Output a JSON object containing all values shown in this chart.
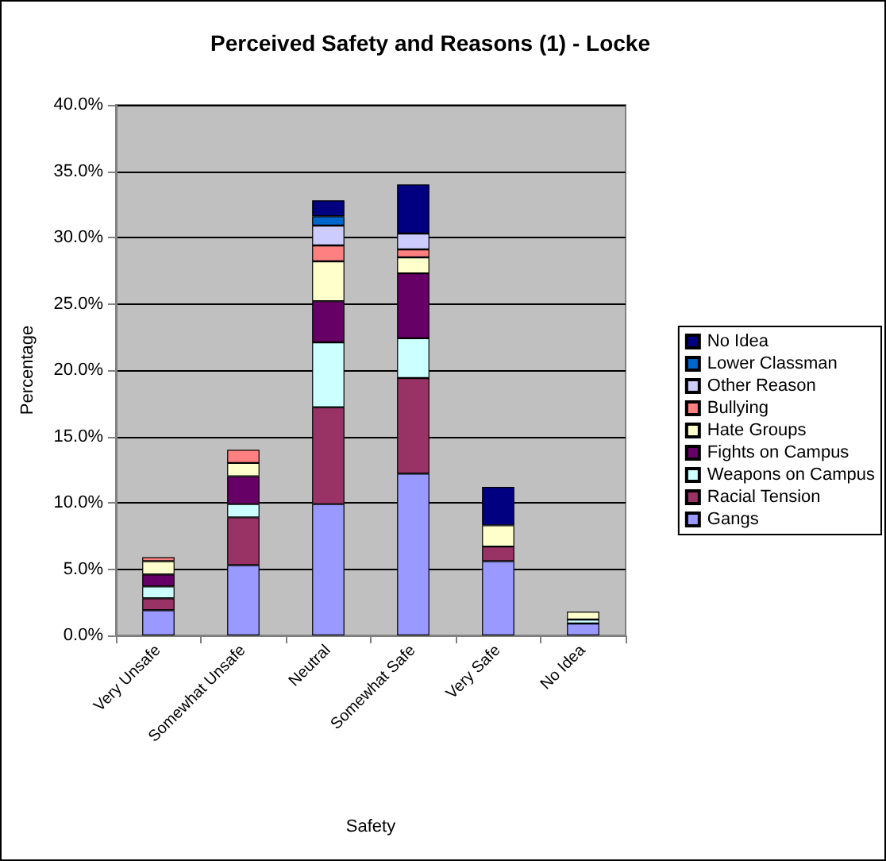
{
  "chart_data": {
    "type": "bar",
    "stacked": true,
    "title": "Perceived Safety and Reasons (1) - Locke",
    "xlabel": "Safety",
    "ylabel": "Percentage",
    "categories": [
      "Very Unsafe",
      "Somewhat Unsafe",
      "Neutral",
      "Somewhat Safe",
      "Very Safe",
      "No Idea"
    ],
    "ylim": [
      0,
      40
    ],
    "yticks": [
      {
        "value": 0,
        "label": "0.0%"
      },
      {
        "value": 5,
        "label": "5.0%"
      },
      {
        "value": 10,
        "label": "10.0%"
      },
      {
        "value": 15,
        "label": "15.0%"
      },
      {
        "value": 20,
        "label": "20.0%"
      },
      {
        "value": 25,
        "label": "25.0%"
      },
      {
        "value": 30,
        "label": "30.0%"
      },
      {
        "value": 35,
        "label": "35.0%"
      },
      {
        "value": 40,
        "label": "40.0%"
      }
    ],
    "grid": "y",
    "legend": "right",
    "series": [
      {
        "name": "Gangs",
        "color": "#9999ff",
        "values": [
          1.9,
          5.3,
          9.9,
          12.2,
          5.6,
          0.9
        ]
      },
      {
        "name": "Racial Tension",
        "color": "#993366",
        "values": [
          0.9,
          3.6,
          7.3,
          7.2,
          1.1,
          null
        ]
      },
      {
        "name": "Weapons on Campus",
        "color": "#ccffff",
        "values": [
          0.9,
          1.0,
          4.9,
          3.0,
          null,
          0.3
        ]
      },
      {
        "name": "Fights on Campus",
        "color": "#660066",
        "values": [
          0.9,
          2.1,
          3.1,
          4.9,
          null,
          null
        ]
      },
      {
        "name": "Hate Groups",
        "color": "#ffffcc",
        "values": [
          1.0,
          1.0,
          3.0,
          1.2,
          1.6,
          0.6
        ]
      },
      {
        "name": "Bullying",
        "color": "#ff8080",
        "values": [
          0.3,
          1.0,
          1.2,
          0.6,
          null,
          null
        ]
      },
      {
        "name": "Other Reason",
        "color": "#ccccff",
        "values": [
          null,
          null,
          1.5,
          1.2,
          null,
          null
        ]
      },
      {
        "name": "Lower Classman",
        "color": "#0066cc",
        "values": [
          null,
          null,
          0.7,
          null,
          null,
          null
        ]
      },
      {
        "name": "No Idea",
        "color": "#000080",
        "values": [
          null,
          null,
          1.2,
          3.7,
          2.9,
          null
        ]
      }
    ]
  }
}
